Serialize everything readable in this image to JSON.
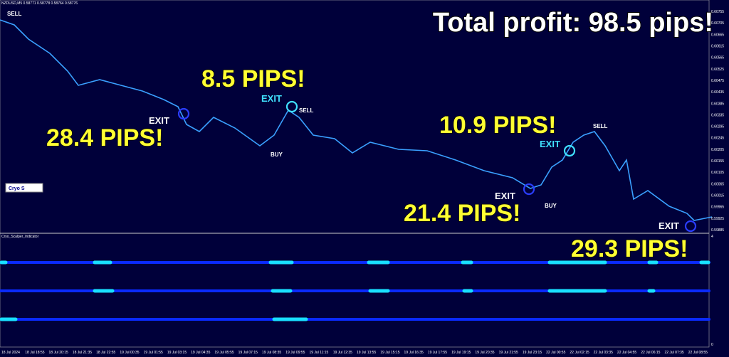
{
  "header": {
    "symbol_line": "NZDUSD,M5  0.58771 0.58778 0.58764 0.58776",
    "total_profit": "Total profit: 98.5 pips!"
  },
  "annotations": {
    "pips": [
      "28.4 PIPS!",
      "8.5 PIPS!",
      "10.9 PIPS!",
      "21.4 PIPS!",
      "29.3 PIPS!"
    ],
    "sell": "SELL",
    "buy": "BUY",
    "exit": "EXIT"
  },
  "indicator": {
    "name": "Cryo_Scalper_Indicator",
    "panel_label": "Cryo S",
    "scale_top": "4",
    "scale_bottom": "0"
  },
  "price_axis": [
    "0.60755",
    "0.60705",
    "0.60665",
    "0.60615",
    "0.60565",
    "0.60525",
    "0.60475",
    "0.60435",
    "0.60385",
    "0.60335",
    "0.60295",
    "0.60245",
    "0.60205",
    "0.60155",
    "0.60105",
    "0.60065",
    "0.60015",
    "0.59965",
    "0.59925",
    "0.59885"
  ],
  "time_axis": [
    "18 Jul 2024",
    "18 Jul 18:55",
    "18 Jul 20:15",
    "18 Jul 21:35",
    "18 Jul 22:55",
    "19 Jul 00:35",
    "19 Jul 01:55",
    "19 Jul 03:15",
    "19 Jul 04:35",
    "19 Jul 05:55",
    "19 Jul 07:15",
    "19 Jul 08:35",
    "19 Jul 09:55",
    "19 Jul 11:15",
    "19 Jul 12:35",
    "19 Jul 13:55",
    "19 Jul 15:15",
    "19 Jul 16:35",
    "19 Jul 17:55",
    "19 Jul 19:15",
    "19 Jul 20:35",
    "19 Jul 21:55",
    "19 Jul 23:15",
    "22 Jul 00:55",
    "22 Jul 02:15",
    "22 Jul 03:35",
    "22 Jul 04:55",
    "22 Jul 06:15",
    "22 Jul 07:35",
    "22 Jul 08:55"
  ]
}
